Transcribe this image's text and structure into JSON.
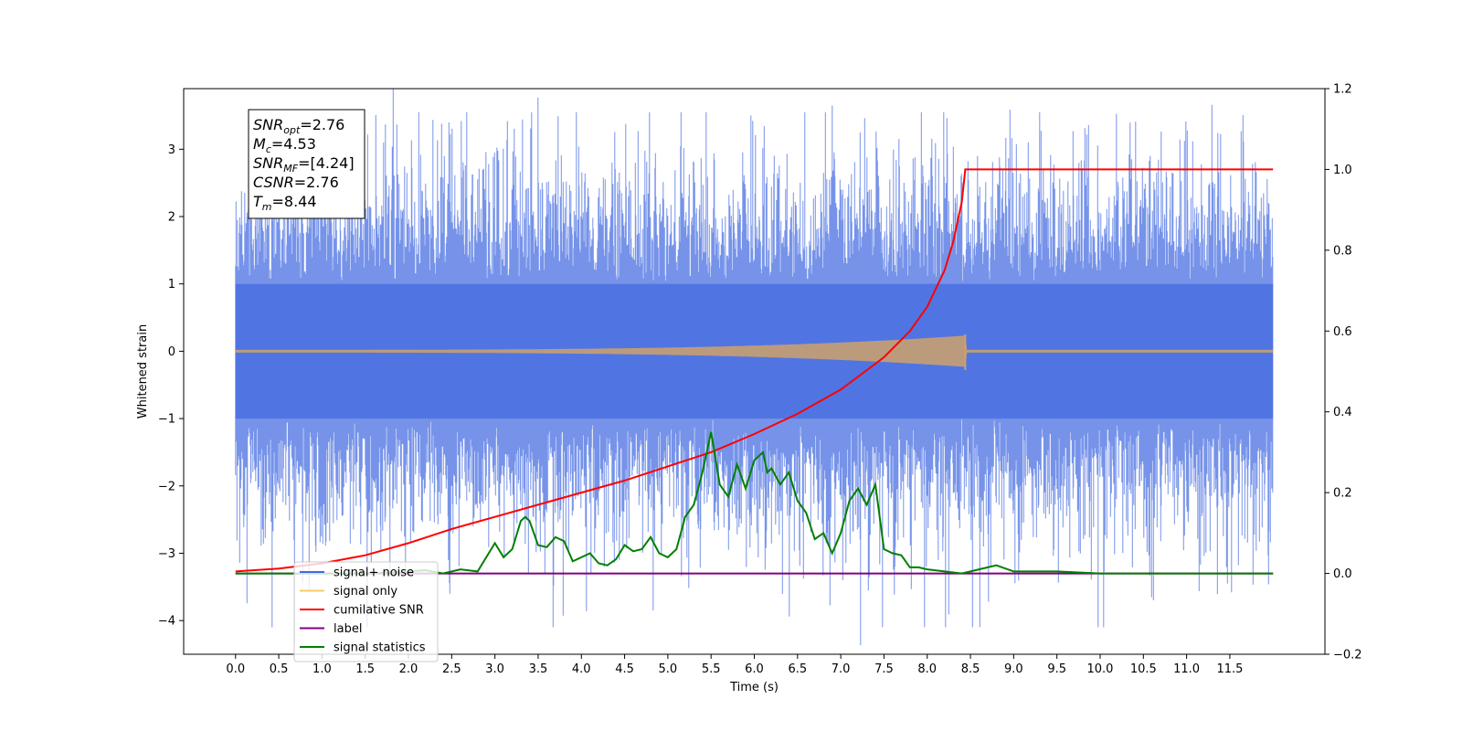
{
  "chart_data": {
    "type": "line",
    "xlabel": "Time (s)",
    "ylabel": "Whitened strain",
    "title": "",
    "xlim": [
      -0.6,
      12.6
    ],
    "ylim": [
      -4.5,
      3.9
    ],
    "y2lim": [
      -0.2,
      1.2
    ],
    "x_ticks": [
      0.0,
      0.5,
      1.0,
      1.5,
      2.0,
      2.5,
      3.0,
      3.5,
      4.0,
      4.5,
      5.0,
      5.5,
      6.0,
      6.5,
      7.0,
      7.5,
      8.0,
      8.5,
      9.0,
      9.5,
      10.0,
      10.5,
      11.0,
      11.5
    ],
    "x_tick_labels": [
      "0.0",
      "0.5",
      "1.0",
      "1.5",
      "2.0",
      "2.5",
      "3.0",
      "3.5",
      "4.0",
      "4.5",
      "5.0",
      "5.5",
      "6.0",
      "6.5",
      "7.0",
      "7.5",
      "8.0",
      "8.5",
      "9.0",
      "9.5",
      "10.0",
      "10.5",
      "11.0",
      "11.5"
    ],
    "y_ticks": [
      -4,
      -3,
      -2,
      -1,
      0,
      1,
      2,
      3
    ],
    "y_tick_labels": [
      "−4",
      "−3",
      "−2",
      "−1",
      "0",
      "1",
      "2",
      "3"
    ],
    "y2_ticks": [
      -0.2,
      0.0,
      0.2,
      0.4,
      0.6,
      0.8,
      1.0,
      1.2
    ],
    "y2_tick_labels": [
      "−0.2",
      "0.0",
      "0.2",
      "0.4",
      "0.6",
      "0.8",
      "1.0",
      "1.2"
    ],
    "grid": false,
    "legend_position": "bottom-left",
    "colors": {
      "signal_noise": "#4169e1",
      "signal_only": "#ffa500",
      "cumulative_snr": "#ff0000",
      "label": "#800080",
      "signal_statistics": "#008000"
    },
    "legend": [
      {
        "key": "signal_noise",
        "label": "signal+ noise"
      },
      {
        "key": "signal_only",
        "label": "signal only"
      },
      {
        "key": "cumulative_snr",
        "label": "cumilative SNR"
      },
      {
        "key": "label",
        "label": "label"
      },
      {
        "key": "signal_statistics",
        "label": "signal statistics"
      }
    ],
    "annotation_lines": [
      {
        "base": "SNR",
        "sub": "opt",
        "rest": "=2.76"
      },
      {
        "base": "M",
        "sub": "c",
        "rest": "=4.53"
      },
      {
        "base": "SNR",
        "sub": "MF",
        "rest": "=[4.24]"
      },
      {
        "base": "CSNR",
        "sub": "",
        "rest": "=2.76"
      },
      {
        "base": "T",
        "sub": "m",
        "rest": "=8.44"
      }
    ],
    "series": [
      {
        "key": "signal_noise",
        "axis": "left",
        "style": "noise",
        "x_range": [
          0.0,
          12.0
        ],
        "amplitude_typical": 1.6,
        "max": 3.55,
        "min": -4.1
      },
      {
        "key": "signal_only",
        "axis": "left",
        "style": "chirp",
        "x_range": [
          0.0,
          12.0
        ],
        "merger_time": 8.44,
        "peak_amplitude": 0.25
      },
      {
        "key": "cumulative_snr",
        "axis": "right",
        "x": [
          0.0,
          0.5,
          1.0,
          1.5,
          2.0,
          2.5,
          3.0,
          3.5,
          4.0,
          4.5,
          5.0,
          5.5,
          6.0,
          6.5,
          7.0,
          7.5,
          7.8,
          8.0,
          8.2,
          8.3,
          8.4,
          8.44,
          12.0
        ],
        "y": [
          0.005,
          0.012,
          0.025,
          0.045,
          0.075,
          0.11,
          0.14,
          0.17,
          0.2,
          0.23,
          0.265,
          0.3,
          0.345,
          0.395,
          0.455,
          0.535,
          0.6,
          0.66,
          0.75,
          0.82,
          0.92,
          1.0,
          1.0
        ]
      },
      {
        "key": "label",
        "axis": "right",
        "x": [
          0.0,
          12.0
        ],
        "y": [
          0.0,
          0.0
        ]
      },
      {
        "key": "signal_statistics",
        "axis": "right",
        "x": [
          0.0,
          0.5,
          1.0,
          1.5,
          2.0,
          2.2,
          2.4,
          2.6,
          2.8,
          3.0,
          3.1,
          3.2,
          3.3,
          3.35,
          3.4,
          3.5,
          3.6,
          3.7,
          3.8,
          3.9,
          4.0,
          4.1,
          4.2,
          4.3,
          4.4,
          4.5,
          4.6,
          4.7,
          4.8,
          4.9,
          5.0,
          5.1,
          5.2,
          5.3,
          5.4,
          5.5,
          5.6,
          5.7,
          5.8,
          5.9,
          6.0,
          6.1,
          6.15,
          6.2,
          6.3,
          6.4,
          6.5,
          6.6,
          6.7,
          6.8,
          6.9,
          7.0,
          7.1,
          7.2,
          7.3,
          7.4,
          7.5,
          7.6,
          7.7,
          7.8,
          7.9,
          8.0,
          8.2,
          8.4,
          8.6,
          8.8,
          9.0,
          9.2,
          9.5,
          10.0,
          11.0,
          12.0
        ],
        "y": [
          0.0,
          0.0,
          0.0,
          0.0,
          0.005,
          0.008,
          0.0,
          0.01,
          0.005,
          0.075,
          0.04,
          0.06,
          0.13,
          0.14,
          0.13,
          0.07,
          0.065,
          0.09,
          0.08,
          0.03,
          0.04,
          0.05,
          0.025,
          0.02,
          0.035,
          0.07,
          0.055,
          0.06,
          0.09,
          0.05,
          0.04,
          0.06,
          0.14,
          0.17,
          0.25,
          0.35,
          0.22,
          0.19,
          0.27,
          0.21,
          0.28,
          0.3,
          0.25,
          0.26,
          0.22,
          0.25,
          0.18,
          0.15,
          0.085,
          0.1,
          0.05,
          0.1,
          0.18,
          0.21,
          0.17,
          0.22,
          0.06,
          0.05,
          0.045,
          0.015,
          0.015,
          0.01,
          0.005,
          0.0,
          0.01,
          0.02,
          0.005,
          0.005,
          0.005,
          0.0,
          0.0,
          0.0
        ]
      }
    ]
  }
}
